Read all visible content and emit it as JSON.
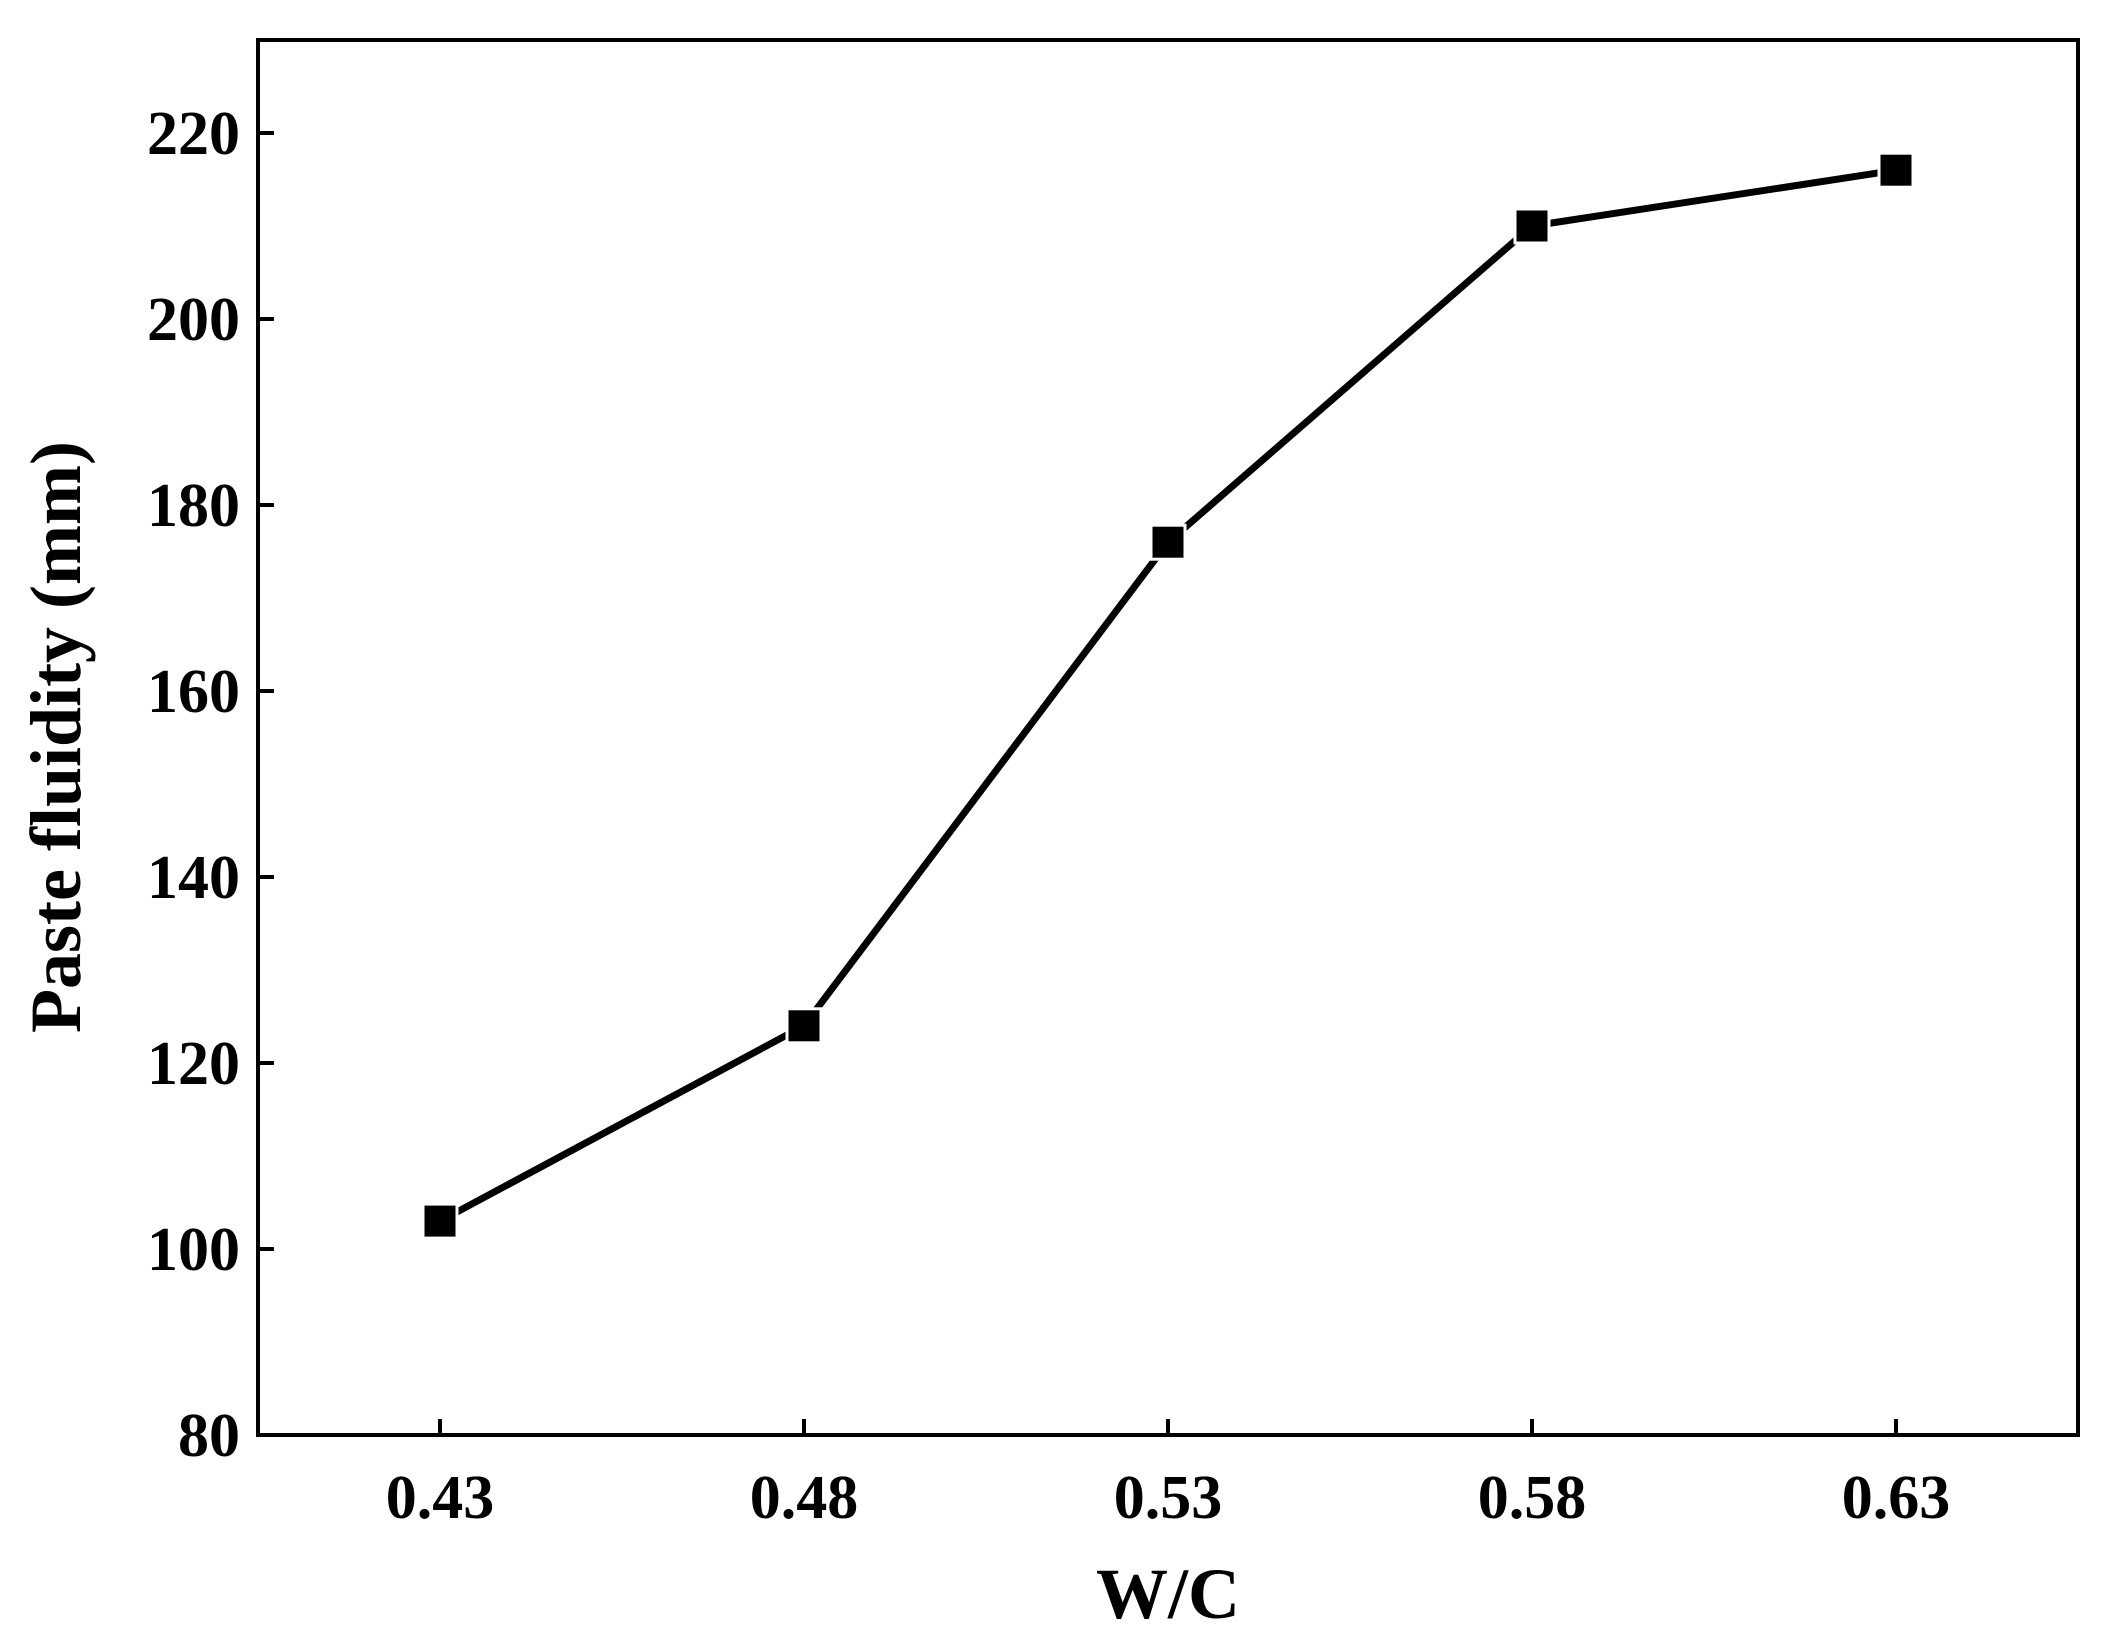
{
  "chart_data": {
    "type": "line",
    "title": "",
    "xlabel": "W/C",
    "ylabel": "Paste fluidity (mm)",
    "categories": [
      "0.43",
      "0.48",
      "0.53",
      "0.58",
      "0.63"
    ],
    "x": [
      0.43,
      0.48,
      0.53,
      0.58,
      0.63
    ],
    "series": [
      {
        "values": [
          103,
          124,
          176,
          210,
          216
        ],
        "marker": "square",
        "color": "#000000"
      }
    ],
    "xlim": [
      0.405,
      0.655
    ],
    "ylim": [
      80,
      230
    ],
    "yticks": [
      80,
      100,
      120,
      140,
      160,
      180,
      200,
      220
    ],
    "xticks": [
      0.43,
      0.48,
      0.53,
      0.58,
      0.63
    ],
    "grid": false,
    "legend": "none"
  }
}
